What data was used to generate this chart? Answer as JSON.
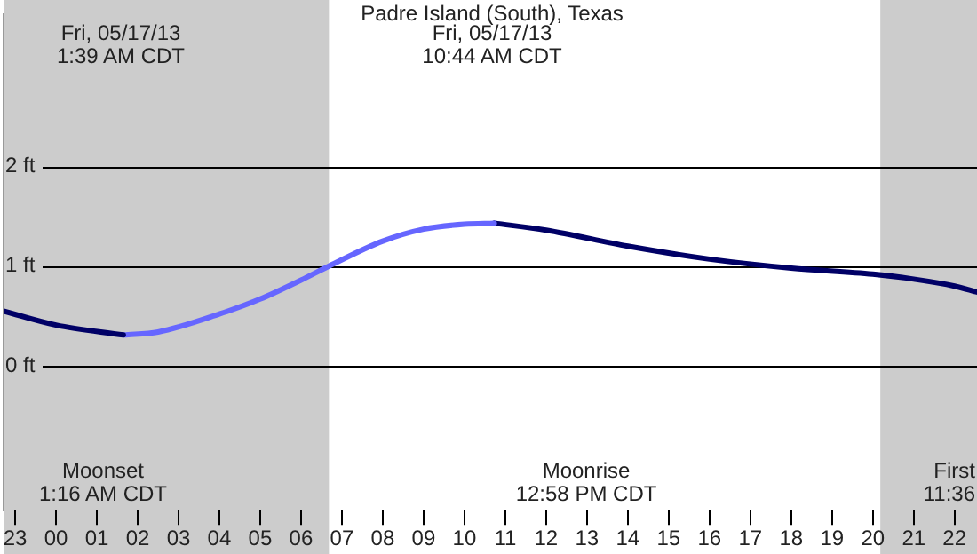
{
  "chart_data": {
    "type": "line",
    "title": "Padre Island (South), Texas",
    "series": [
      {
        "color": "#000066",
        "x": [
          "--05-16T22:43",
          "--05-17T00:00",
          "--05-17T01:39"
        ],
        "values": [
          0.55,
          0.41,
          0.31
        ]
      },
      {
        "color": "#6666ff",
        "x": [
          "--05-17T01:39",
          "--05-17T02:30",
          "--05-17T04:00",
          "--05-17T05:00",
          "--05-17T06:00",
          "--05-17T06:41",
          "--05-17T08:00",
          "--05-17T09:00",
          "--05-17T10:00",
          "--05-17T10:44"
        ],
        "values": [
          0.31,
          0.34,
          0.52,
          0.67,
          0.86,
          1.0,
          1.25,
          1.37,
          1.42,
          1.43
        ]
      },
      {
        "color": "#000066",
        "x": [
          "--05-17T10:44",
          "--05-17T12:00",
          "--05-17T14:00",
          "--05-17T16:00",
          "--05-17T18:00",
          "--05-17T20:00",
          "--05-17T21:00",
          "--05-17T22:00",
          "--05-17T22:33"
        ],
        "values": [
          1.43,
          1.36,
          1.2,
          1.07,
          0.98,
          0.92,
          0.87,
          0.8,
          0.74
        ]
      }
    ],
    "xlim": [
      "--05-16T22:43",
      "--05-17T22:33"
    ],
    "xticks": [
      {
        "value": "--05-16T23:00",
        "label": "23"
      },
      {
        "value": "--05-17T00:00",
        "label": "00"
      },
      {
        "value": "--05-17T01:00",
        "label": "01"
      },
      {
        "value": "--05-17T02:00",
        "label": "02"
      },
      {
        "value": "--05-17T03:00",
        "label": "03"
      },
      {
        "value": "--05-17T04:00",
        "label": "04"
      },
      {
        "value": "--05-17T05:00",
        "label": "05"
      },
      {
        "value": "--05-17T06:00",
        "label": "06"
      },
      {
        "value": "--05-17T07:00",
        "label": "07"
      },
      {
        "value": "--05-17T08:00",
        "label": "08"
      },
      {
        "value": "--05-17T09:00",
        "label": "09"
      },
      {
        "value": "--05-17T10:00",
        "label": "10"
      },
      {
        "value": "--05-17T11:00",
        "label": "11"
      },
      {
        "value": "--05-17T12:00",
        "label": "12"
      },
      {
        "value": "--05-17T13:00",
        "label": "13"
      },
      {
        "value": "--05-17T14:00",
        "label": "14"
      },
      {
        "value": "--05-17T15:00",
        "label": "15"
      },
      {
        "value": "--05-17T16:00",
        "label": "16"
      },
      {
        "value": "--05-17T17:00",
        "label": "17"
      },
      {
        "value": "--05-17T18:00",
        "label": "18"
      },
      {
        "value": "--05-17T19:00",
        "label": "19"
      },
      {
        "value": "--05-17T20:00",
        "label": "20"
      },
      {
        "value": "--05-17T21:00",
        "label": "21"
      },
      {
        "value": "--05-17T22:00",
        "label": "22"
      }
    ],
    "ylim": [
      -1.45,
      3.52
    ],
    "yticks": [
      {
        "value": 0,
        "label": "0 ft"
      },
      {
        "value": 1,
        "label": "1 ft"
      },
      {
        "value": 2,
        "label": "2 ft"
      }
    ],
    "grid": "y",
    "legend": false,
    "marker": "none",
    "line_style": "solid",
    "bands": [
      {
        "axis": "x",
        "from": "--05-16T22:43",
        "to": "--05-17T06:41",
        "color": "#cccccc"
      },
      {
        "axis": "x",
        "from": "--05-17T20:11",
        "to": "--05-17T22:33",
        "color": "#cccccc"
      }
    ],
    "annotations": [
      "Fri, 05/17/13\n1:39 AM CDT",
      "Fri, 05/17/13\n10:44 AM CDT",
      "Moonset\n1:16 AM CDT",
      "Moonrise\n12:58 PM CDT",
      "First\n11:36"
    ]
  }
}
